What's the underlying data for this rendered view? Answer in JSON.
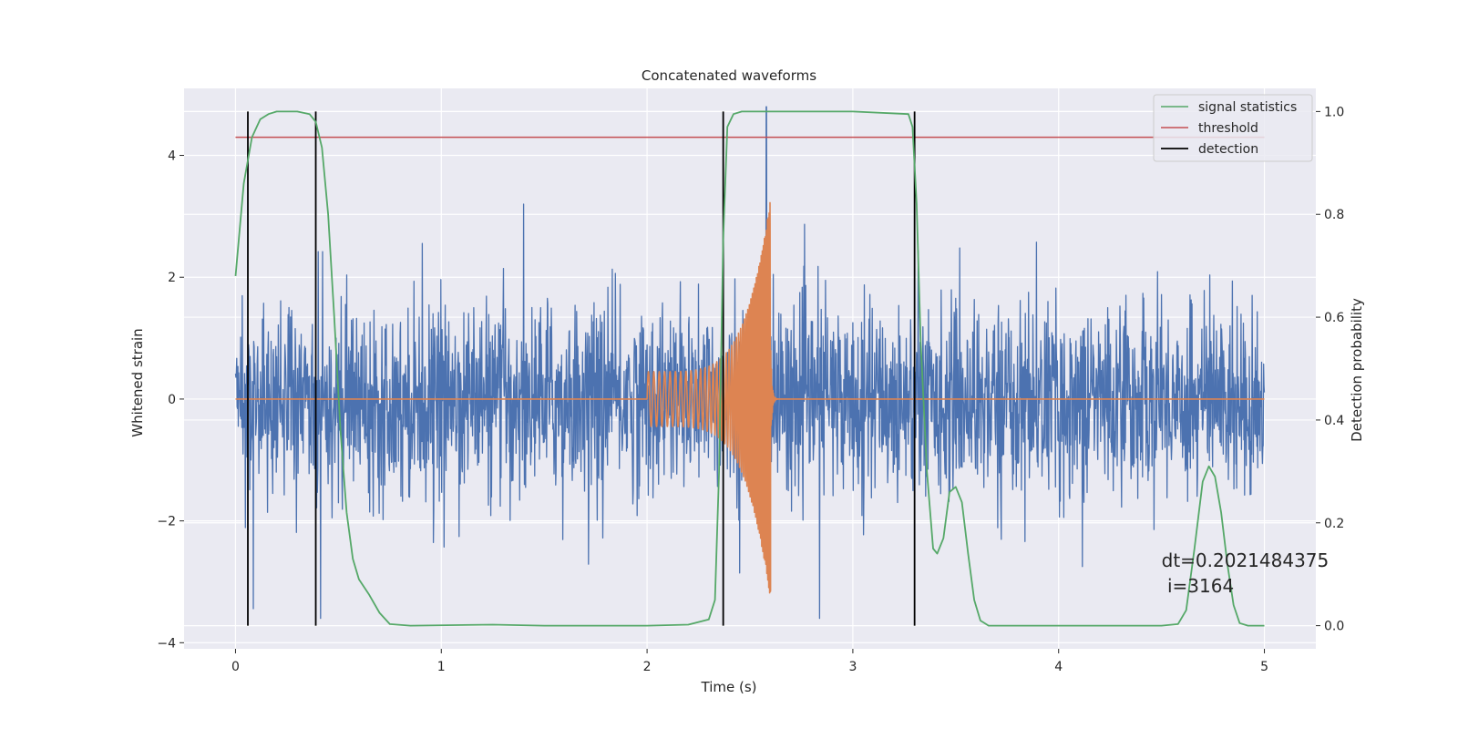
{
  "chart_data": {
    "type": "line",
    "title": "Concatenated waveforms",
    "xlabel": "Time (s)",
    "ylabel_left": "Whitened strain",
    "ylabel_right": "Detection probability",
    "xlim": [
      -0.25,
      5.25
    ],
    "ylim_left": [
      -4.1,
      5.1
    ],
    "ylim_right": [
      -0.045,
      1.045
    ],
    "x_ticks": [
      0,
      1,
      2,
      3,
      4,
      5
    ],
    "x_tick_labels": [
      "0",
      "1",
      "2",
      "3",
      "4",
      "5"
    ],
    "y_left_ticks": [
      -4,
      -2,
      0,
      2,
      4
    ],
    "y_left_tick_labels": [
      "−4",
      "−2",
      "0",
      "2",
      "4"
    ],
    "y_right_ticks": [
      0.0,
      0.2,
      0.4,
      0.6,
      0.8,
      1.0
    ],
    "y_right_tick_labels": [
      "0.0",
      "0.2",
      "0.4",
      "0.6",
      "0.8",
      "1.0"
    ],
    "grid": true,
    "legend_placement": "upper right",
    "colors": {
      "background": "#eaeaf2",
      "grid": "#ffffff",
      "strain": "#4c72b0",
      "injection": "#dd8452",
      "signal_statistics": "#55a868",
      "threshold": "#c44e52",
      "detection": "#000000"
    },
    "series": [
      {
        "name": "whitened strain",
        "axis": "left",
        "description": "noisy whitened strain, amplitude about ±2 with spikes to about ±3",
        "x_range": [
          0,
          5
        ],
        "peak_x": 2.58,
        "peak_y": 4.8
      },
      {
        "name": "injected chirp",
        "axis": "left",
        "x_range": [
          0,
          5
        ],
        "chirp_start": 2.0,
        "chirp_end": 2.6,
        "start_amplitude": 0.45,
        "peak_amplitude": 3.3
      },
      {
        "name": "signal statistics",
        "axis": "right",
        "x": [
          0.0,
          0.04,
          0.08,
          0.12,
          0.16,
          0.2,
          0.3,
          0.36,
          0.39,
          0.42,
          0.45,
          0.48,
          0.51,
          0.54,
          0.57,
          0.6,
          0.65,
          0.7,
          0.75,
          0.85,
          1.25,
          1.5,
          2.0,
          2.2,
          2.3,
          2.33,
          2.35,
          2.37,
          2.39,
          2.42,
          2.46,
          3.0,
          3.27,
          3.29,
          3.31,
          3.33,
          3.36,
          3.39,
          3.41,
          3.44,
          3.47,
          3.5,
          3.53,
          3.56,
          3.59,
          3.62,
          3.66,
          3.75,
          4.0,
          4.5,
          4.58,
          4.62,
          4.66,
          4.7,
          4.73,
          4.76,
          4.79,
          4.82,
          4.85,
          4.88,
          4.92,
          5.0
        ],
        "values": [
          0.68,
          0.86,
          0.95,
          0.985,
          0.995,
          1.0,
          1.0,
          0.995,
          0.98,
          0.93,
          0.8,
          0.6,
          0.38,
          0.22,
          0.13,
          0.09,
          0.06,
          0.025,
          0.003,
          0.0,
          0.002,
          0.0,
          0.0,
          0.002,
          0.012,
          0.05,
          0.3,
          0.75,
          0.97,
          0.995,
          1.0,
          1.0,
          0.995,
          0.97,
          0.82,
          0.55,
          0.3,
          0.15,
          0.14,
          0.17,
          0.26,
          0.27,
          0.24,
          0.14,
          0.05,
          0.01,
          0.0,
          0.0,
          0.0,
          0.0,
          0.003,
          0.03,
          0.15,
          0.28,
          0.31,
          0.29,
          0.22,
          0.12,
          0.04,
          0.005,
          0.0,
          0.0
        ]
      },
      {
        "name": "threshold",
        "axis": "right",
        "x": [
          0,
          5
        ],
        "values": [
          0.95,
          0.95
        ]
      },
      {
        "name": "detection",
        "axis": "right",
        "type": "vlines",
        "x": [
          0.06,
          0.39,
          2.37,
          3.3
        ],
        "range": [
          0,
          1
        ]
      }
    ],
    "legend": [
      "signal statistics",
      "threshold",
      "detection"
    ],
    "annotation": {
      "line1": "dt=0.2021484375",
      "line2": " i=3164",
      "x": 4.5,
      "y_right": 0.1
    }
  }
}
